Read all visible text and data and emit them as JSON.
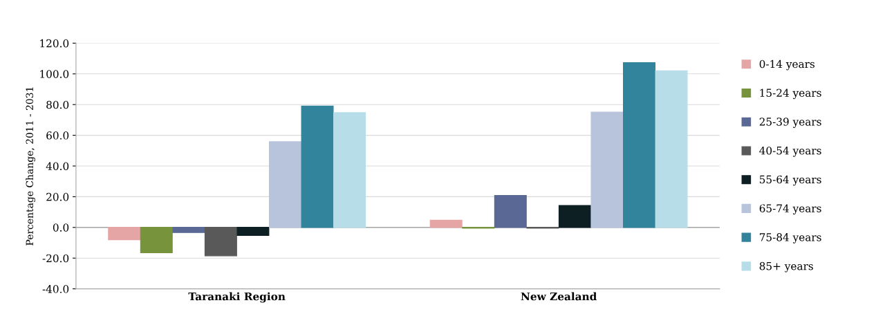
{
  "chart_data": {
    "type": "bar",
    "ylabel": "Percentage Change, 2011 - 2031",
    "categories": [
      "Taranaki Region",
      "New Zealand"
    ],
    "series": [
      {
        "name": "0-14 years",
        "color": "#e6a5a5",
        "values": [
          -8.0,
          4.7
        ]
      },
      {
        "name": "15-24 years",
        "color": "#77933c",
        "values": [
          -16.5,
          -0.5
        ]
      },
      {
        "name": "25-39 years",
        "color": "#5a6896",
        "values": [
          -3.3,
          20.8
        ]
      },
      {
        "name": "40-54 years",
        "color": "#595959",
        "values": [
          -18.5,
          -0.5
        ]
      },
      {
        "name": "55-64 years",
        "color": "#0d1f22",
        "values": [
          -5.2,
          14.2
        ]
      },
      {
        "name": "65-74 years",
        "color": "#b8c4dc",
        "values": [
          55.8,
          75.0
        ]
      },
      {
        "name": "75-84 years",
        "color": "#31849b",
        "values": [
          79.0,
          107.3
        ]
      },
      {
        "name": "85+ years",
        "color": "#b7dee8",
        "values": [
          74.7,
          102.0
        ]
      }
    ],
    "ylim": [
      -40,
      120
    ],
    "yticks": [
      {
        "value": -40,
        "label": "-40.0"
      },
      {
        "value": -20,
        "label": "-20.0"
      },
      {
        "value": 0,
        "label": "0.0"
      },
      {
        "value": 20,
        "label": "20.0"
      },
      {
        "value": 40,
        "label": "40.0"
      },
      {
        "value": 60,
        "label": "60.0"
      },
      {
        "value": 80,
        "label": "80.0"
      },
      {
        "value": 100,
        "label": "100.0"
      },
      {
        "value": 120,
        "label": "120.0"
      }
    ],
    "grid": "y",
    "legend": "right"
  }
}
